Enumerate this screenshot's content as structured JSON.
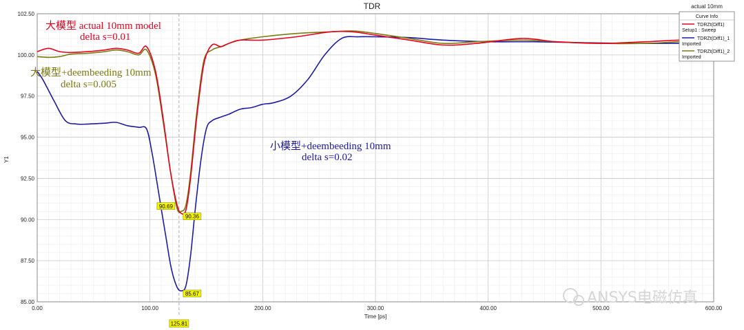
{
  "chart_data": {
    "type": "line",
    "title": "TDR",
    "corner_label": "actual 10mm",
    "xlabel": "Time [ps]",
    "ylabel": "Y1",
    "xlim": [
      0,
      600
    ],
    "ylim": [
      85,
      102.5
    ],
    "x_ticks": [
      "0.00",
      "100.00",
      "200.00",
      "300.00",
      "400.00",
      "500.00",
      "600.00"
    ],
    "y_ticks": [
      "85.00",
      "87.50",
      "90.00",
      "92.50",
      "95.00",
      "97.50",
      "100.00",
      "102.50"
    ],
    "x_tick_values": [
      0,
      100,
      200,
      300,
      400,
      500,
      600
    ],
    "y_tick_values": [
      85,
      87.5,
      90,
      92.5,
      95,
      97.5,
      100,
      102.5
    ],
    "grid": true,
    "legend_position": "top-right",
    "legend_title": "Curve Info",
    "series": [
      {
        "name": "TDRZt(Diff1)",
        "sub": "Setup1 : Sweep",
        "color": "#e8001c",
        "x": [
          0,
          10,
          20,
          30,
          45,
          60,
          70,
          80,
          90,
          97,
          105,
          112,
          118,
          124,
          128,
          132,
          136,
          142,
          148,
          155,
          163,
          170,
          180,
          200,
          230,
          260,
          280,
          300,
          330,
          360,
          390,
          430,
          460,
          500,
          540,
          570,
          600
        ],
        "y": [
          100.2,
          100.4,
          100.2,
          100.15,
          100.2,
          100.3,
          100.4,
          100.3,
          100.1,
          100.5,
          99,
          96,
          93,
          90.9,
          90.36,
          90.6,
          92.5,
          96.5,
          99.5,
          100.6,
          100.5,
          100.7,
          100.9,
          100.9,
          101.1,
          101.4,
          101.4,
          101.2,
          100.9,
          100.6,
          100.7,
          101.0,
          100.8,
          100.7,
          100.8,
          100.9,
          100.9
        ]
      },
      {
        "name": "TDRZt(Diff1)_1",
        "sub": "Imported",
        "color": "#1a1aa6",
        "x": [
          0,
          5,
          15,
          25,
          35,
          45,
          60,
          70,
          80,
          90,
          97,
          102,
          108,
          114,
          119,
          124,
          128,
          132,
          136,
          140,
          145,
          150,
          155,
          162,
          170,
          180,
          190,
          200,
          210,
          225,
          240,
          255,
          270,
          285,
          300,
          330,
          360,
          400,
          440,
          480,
          520,
          560,
          600
        ],
        "y": [
          99,
          98.5,
          97.2,
          96,
          95.8,
          95.8,
          95.85,
          95.9,
          95.7,
          95.6,
          95.5,
          94,
          91.5,
          89,
          87,
          85.9,
          85.67,
          86,
          87.8,
          90.5,
          93.5,
          95.5,
          96.0,
          96.2,
          96.4,
          96.7,
          96.8,
          97,
          97.1,
          97.5,
          98.5,
          100,
          101,
          101.1,
          101.1,
          101.05,
          100.9,
          100.8,
          100.8,
          100.75,
          100.7,
          100.7,
          100.7
        ]
      },
      {
        "name": "TDRZt(Diff1)_2",
        "sub": "Imported",
        "color": "#7a7a10",
        "x": [
          0,
          10,
          20,
          30,
          45,
          60,
          70,
          80,
          90,
          97,
          105,
          112,
          118,
          124,
          128,
          132,
          136,
          142,
          148,
          155,
          163,
          170,
          180,
          200,
          230,
          260,
          280,
          300,
          330,
          360,
          390,
          430,
          460,
          500,
          540,
          570,
          600
        ],
        "y": [
          99.9,
          99.85,
          99.9,
          100.05,
          100.1,
          100.2,
          100.3,
          100.2,
          100.0,
          100.3,
          98.8,
          95.8,
          93,
          90.69,
          90.5,
          90.9,
          92.8,
          96.8,
          99.7,
          100.3,
          100.5,
          100.7,
          100.9,
          101.1,
          101.3,
          101.4,
          101.45,
          101.3,
          101.0,
          100.7,
          100.8,
          100.9,
          100.8,
          100.7,
          100.7,
          100.8,
          100.8
        ]
      }
    ],
    "markers": [
      {
        "label": "90.69",
        "x": 125.81,
        "y": 90.69,
        "side": "left"
      },
      {
        "label": "90.36",
        "x": 125.81,
        "y": 90.36,
        "side": "right"
      },
      {
        "label": "85.67",
        "x": 125.81,
        "y": 85.67,
        "side": "right"
      }
    ],
    "cursor": {
      "x": 125.81,
      "label": "125.81"
    },
    "annotations": [
      {
        "line1": "大模型 actual 10mm model",
        "line2": "delta s=0.01",
        "color": "#e8001c"
      },
      {
        "line1": "大模型+deembeeding 10mm",
        "line2": "delta s=0.005",
        "color": "#7a7a10"
      },
      {
        "line1": "小模型+deembeeding 10mm",
        "line2": "delta s=0.02",
        "color": "#1a1aa6"
      }
    ]
  },
  "watermark": "ANSYS电磁仿真"
}
